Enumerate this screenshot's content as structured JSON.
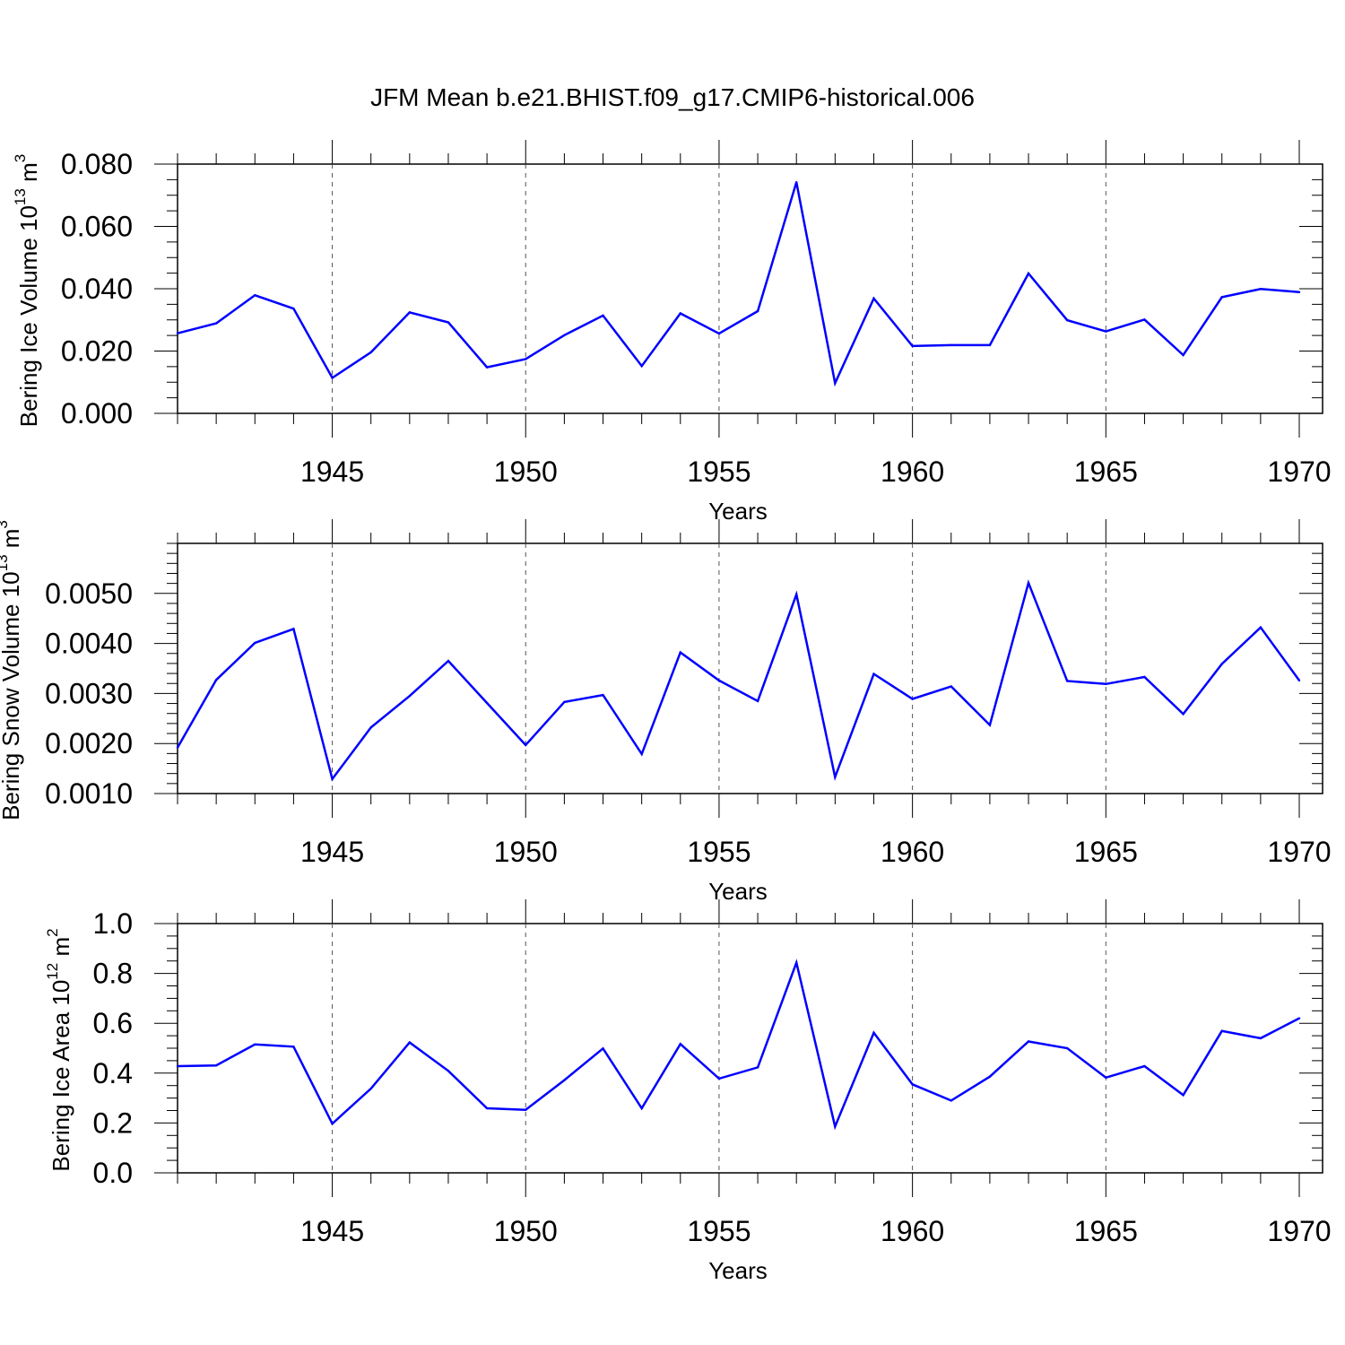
{
  "title": "JFM Mean b.e21.BHIST.f09_g17.CMIP6-historical.006",
  "colors": {
    "series": "#0000ff",
    "axis": "#000000",
    "grid": "#555555"
  },
  "chart_data": [
    {
      "type": "line",
      "ylabel_main": "Bering Ice Volume 10",
      "ylabel_exp": "13",
      "ylabel_unit": " m",
      "ylabel_unit_exp": "3",
      "xlabel": "Years",
      "xlim": [
        1941,
        1970
      ],
      "ylim": [
        0.0,
        0.08
      ],
      "x_ticks": [
        "1945",
        "1950",
        "1955",
        "1960",
        "1965",
        "1970"
      ],
      "y_ticks": [
        "0.000",
        "0.020",
        "0.040",
        "0.060",
        "0.080"
      ],
      "x": [
        1941,
        1942,
        1943,
        1944,
        1945,
        1946,
        1947,
        1948,
        1949,
        1950,
        1951,
        1952,
        1953,
        1954,
        1955,
        1956,
        1957,
        1958,
        1959,
        1960,
        1961,
        1962,
        1963,
        1964,
        1965,
        1966,
        1967,
        1968,
        1969,
        1970
      ],
      "values": [
        0.0257,
        0.0289,
        0.0379,
        0.0336,
        0.0114,
        0.0196,
        0.0324,
        0.0292,
        0.0148,
        0.0174,
        0.0251,
        0.0314,
        0.0152,
        0.0321,
        0.0256,
        0.0328,
        0.0742,
        0.0097,
        0.0369,
        0.0216,
        0.0219,
        0.0219,
        0.0449,
        0.0299,
        0.0263,
        0.0301,
        0.0187,
        0.0373,
        0.0399,
        0.0389
      ]
    },
    {
      "type": "line",
      "ylabel_main": "Bering Snow Volume 10",
      "ylabel_exp": "13",
      "ylabel_unit": " m",
      "ylabel_unit_exp": "3",
      "xlabel": "Years",
      "xlim": [
        1941,
        1970
      ],
      "ylim": [
        0.001,
        0.006
      ],
      "x_ticks": [
        "1945",
        "1950",
        "1955",
        "1960",
        "1965",
        "1970"
      ],
      "y_ticks": [
        "0.0010",
        "0.0020",
        "0.0030",
        "0.0040",
        "0.0050"
      ],
      "x": [
        1941,
        1942,
        1943,
        1944,
        1945,
        1946,
        1947,
        1948,
        1949,
        1950,
        1951,
        1952,
        1953,
        1954,
        1955,
        1956,
        1957,
        1958,
        1959,
        1960,
        1961,
        1962,
        1963,
        1964,
        1965,
        1966,
        1967,
        1968,
        1969,
        1970
      ],
      "values": [
        0.00192,
        0.00327,
        0.00401,
        0.00429,
        0.00129,
        0.00232,
        0.00295,
        0.00365,
        0.00281,
        0.00197,
        0.00283,
        0.00297,
        0.00179,
        0.00382,
        0.00326,
        0.00285,
        0.00498,
        0.00133,
        0.00339,
        0.00289,
        0.00314,
        0.00237,
        0.00521,
        0.00325,
        0.00319,
        0.00333,
        0.00259,
        0.00359,
        0.00432,
        0.00326
      ]
    },
    {
      "type": "line",
      "ylabel_main": "Bering Ice Area 10",
      "ylabel_exp": "12",
      "ylabel_unit": " m",
      "ylabel_unit_exp": "2",
      "xlabel": "Years",
      "xlim": [
        1941,
        1970
      ],
      "ylim": [
        0.0,
        1.0
      ],
      "x_ticks": [
        "1945",
        "1950",
        "1955",
        "1960",
        "1965",
        "1970"
      ],
      "y_ticks": [
        "0.0",
        "0.2",
        "0.4",
        "0.6",
        "0.8",
        "1.0"
      ],
      "x": [
        1941,
        1942,
        1943,
        1944,
        1945,
        1946,
        1947,
        1948,
        1949,
        1950,
        1951,
        1952,
        1953,
        1954,
        1955,
        1956,
        1957,
        1958,
        1959,
        1960,
        1961,
        1962,
        1963,
        1964,
        1965,
        1966,
        1967,
        1968,
        1969,
        1970
      ],
      "values": [
        0.428,
        0.431,
        0.515,
        0.506,
        0.197,
        0.338,
        0.523,
        0.409,
        0.259,
        0.253,
        0.372,
        0.499,
        0.259,
        0.517,
        0.378,
        0.423,
        0.843,
        0.186,
        0.562,
        0.355,
        0.29,
        0.386,
        0.527,
        0.5,
        0.382,
        0.428,
        0.312,
        0.569,
        0.54,
        0.62
      ]
    }
  ]
}
